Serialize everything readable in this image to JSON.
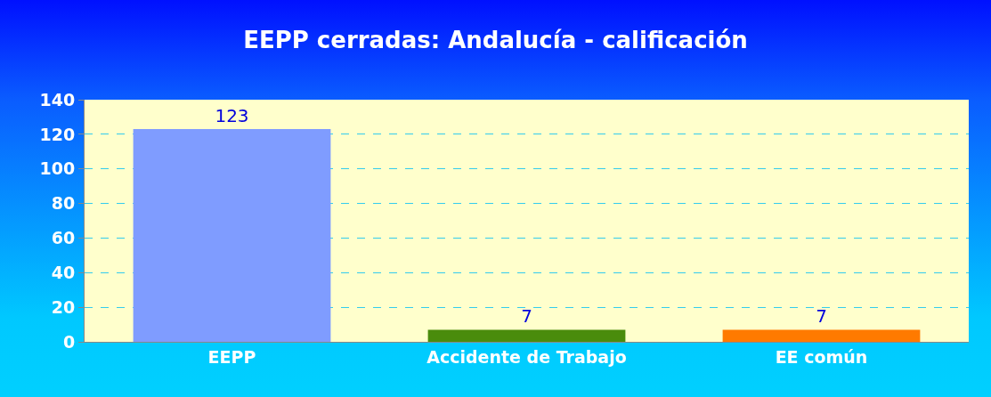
{
  "chart_data": {
    "type": "bar",
    "title": "EEPP cerradas: Andalucía - calificación",
    "categories": [
      "EEPP",
      "Accidente de Trabajo",
      "EE común"
    ],
    "values": [
      123,
      7,
      7
    ],
    "colors": [
      "#7f9cff",
      "#4a8c0c",
      "#ff7a00"
    ],
    "ylim": [
      0,
      140
    ],
    "yticks": [
      0,
      20,
      40,
      60,
      80,
      100,
      120,
      140
    ],
    "grid": "y",
    "data_labels": true
  }
}
